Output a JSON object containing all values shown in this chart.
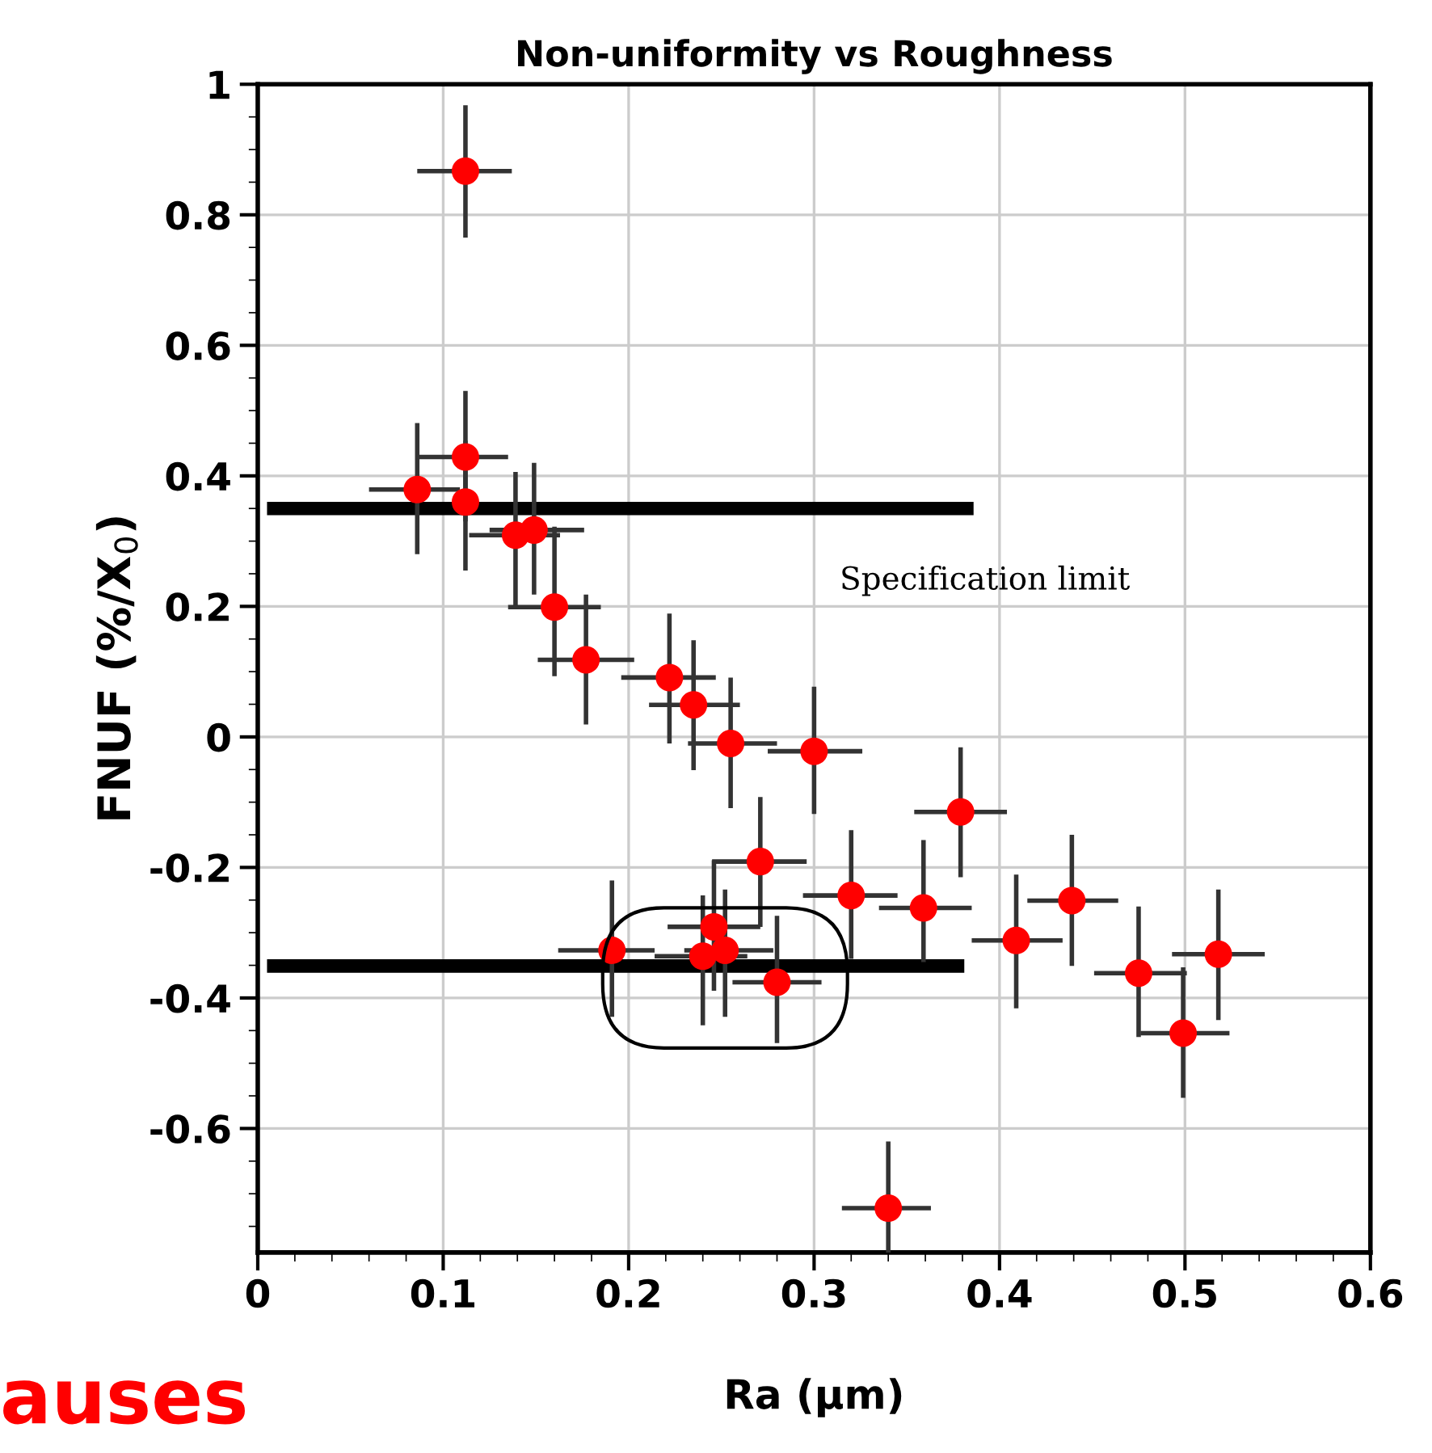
{
  "chart_data": {
    "type": "scatter",
    "title": "Non-uniformity vs Roughness",
    "xlabel": "Ra (µm)",
    "ylabel": "FNUF (%/X$_{0}$)",
    "xlim": [
      0,
      0.6
    ],
    "ylim": [
      -0.79,
      1
    ],
    "xticks": [
      0,
      0.1,
      0.2,
      0.3,
      0.4,
      0.5,
      0.6
    ],
    "yticks": [
      -0.6,
      -0.4,
      -0.2,
      0,
      0.2,
      0.4,
      0.6,
      0.8,
      1
    ],
    "grid": true,
    "series": [
      {
        "marker": "circle",
        "color": "#ff0000",
        "x": [
          0.112,
          0.112,
          0.086,
          0.112,
          0.139,
          0.149,
          0.16,
          0.177,
          0.222,
          0.235,
          0.255,
          0.3,
          0.379,
          0.271,
          0.32,
          0.359,
          0.409,
          0.439,
          0.475,
          0.499,
          0.518,
          0.34,
          0.191,
          0.246,
          0.24,
          0.252,
          0.28
        ],
        "values": [
          0.867,
          0.429,
          0.379,
          0.36,
          0.309,
          0.317,
          0.199,
          0.118,
          0.091,
          0.049,
          -0.01,
          -0.022,
          -0.115,
          -0.191,
          -0.243,
          -0.262,
          -0.312,
          -0.251,
          -0.362,
          -0.454,
          -0.333,
          -0.722,
          -0.327,
          -0.291,
          -0.336,
          -0.327,
          -0.376
        ],
        "errors": [
          [
            0.765,
            0.968
          ],
          [
            0.33,
            0.53
          ],
          [
            0.28,
            0.481
          ],
          [
            0.255,
            0.454
          ],
          [
            0.201,
            0.406
          ],
          [
            0.218,
            0.42
          ],
          [
            0.093,
            0.322
          ],
          [
            0.019,
            0.218
          ],
          [
            -0.01,
            0.189
          ],
          [
            -0.051,
            0.148
          ],
          [
            -0.109,
            0.091
          ],
          [
            -0.118,
            0.077
          ],
          [
            -0.215,
            -0.016
          ],
          [
            -0.291,
            -0.092
          ],
          [
            -0.34,
            -0.143
          ],
          [
            -0.345,
            -0.158
          ],
          [
            -0.416,
            -0.211
          ],
          [
            -0.351,
            -0.15
          ],
          [
            -0.46,
            -0.26
          ],
          [
            -0.553,
            -0.353
          ],
          [
            -0.434,
            -0.234
          ],
          [
            -0.79,
            -0.62
          ],
          [
            -0.429,
            -0.22
          ],
          [
            -0.389,
            -0.189
          ],
          [
            -0.442,
            -0.243
          ],
          [
            -0.429,
            -0.234
          ],
          [
            -0.469,
            -0.274
          ]
        ],
        "xerrors": [
          [
            0.086,
            0.137
          ],
          [
            0.086,
            0.135
          ],
          [
            0.06,
            0.109
          ],
          null,
          [
            0.114,
            0.163
          ],
          [
            0.125,
            0.176
          ],
          [
            0.135,
            0.185
          ],
          [
            0.151,
            0.203
          ],
          [
            0.196,
            0.247
          ],
          [
            0.211,
            0.26
          ],
          [
            0.232,
            0.28
          ],
          [
            0.275,
            0.326
          ],
          [
            0.354,
            0.404
          ],
          [
            0.245,
            0.296
          ],
          [
            0.294,
            0.345
          ],
          [
            0.335,
            0.385
          ],
          [
            0.385,
            0.434
          ],
          [
            0.415,
            0.464
          ],
          [
            0.451,
            0.501
          ],
          [
            0.476,
            0.524
          ],
          [
            0.493,
            0.543
          ],
          [
            0.315,
            0.363
          ],
          [
            0.162,
            0.214
          ],
          [
            0.221,
            0.271
          ],
          [
            0.214,
            0.264
          ],
          [
            0.23,
            0.278
          ],
          [
            0.256,
            0.304
          ]
        ]
      },
      {
        "type": "line",
        "color": "#000000",
        "x": [
          0.005,
          0.386
        ],
        "values": [
          0.35,
          0.35
        ]
      },
      {
        "type": "line",
        "color": "#000000",
        "x": [
          0.005,
          0.381
        ],
        "values": [
          -0.351,
          -0.351
        ]
      }
    ],
    "annotations": [
      "Specification limit",
      "auses"
    ]
  }
}
